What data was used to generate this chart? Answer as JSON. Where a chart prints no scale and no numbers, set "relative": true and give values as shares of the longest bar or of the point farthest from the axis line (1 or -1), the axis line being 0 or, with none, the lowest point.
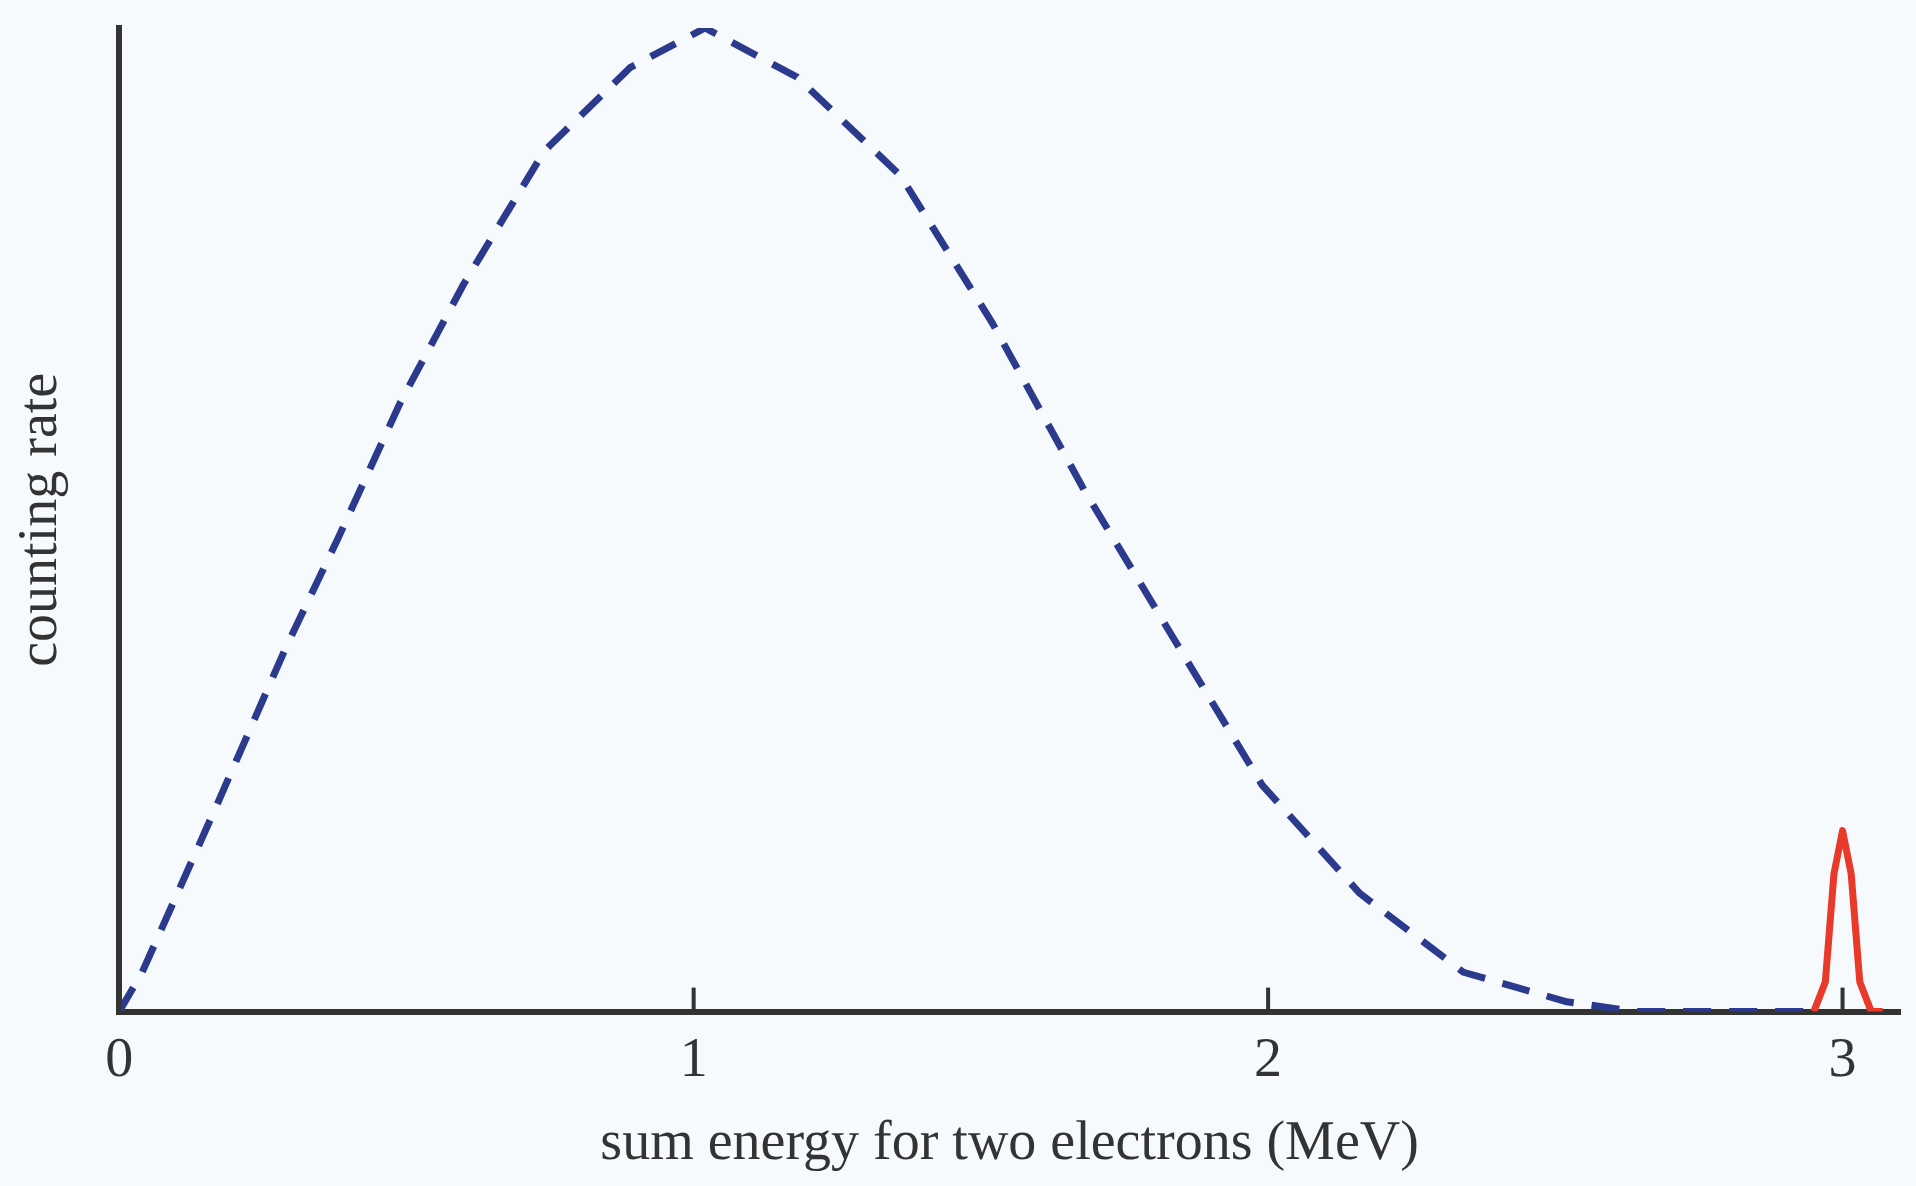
{
  "chart_data": {
    "type": "line",
    "relative": true,
    "xlabel": "sum energy for two electrons (MeV)",
    "ylabel": "counting rate",
    "xlim": [
      0,
      3.1
    ],
    "xticks": [
      0,
      1,
      2,
      3
    ],
    "grid": false,
    "legend": false,
    "marker": "none",
    "series": [
      {
        "color": "#2b3a8c",
        "line_style": "dashed",
        "x": [
          0,
          0.04,
          0.17,
          0.29,
          0.38,
          0.49,
          0.6,
          0.74,
          0.89,
          1.02,
          1.18,
          1.36,
          1.52,
          1.68,
          1.84,
          1.99,
          2.16,
          2.34,
          2.52,
          2.64,
          2.8,
          2.95
        ],
        "values": [
          0,
          0.04,
          0.21,
          0.37,
          0.48,
          0.62,
          0.74,
          0.875,
          0.96,
          1,
          0.95,
          0.85,
          0.7,
          0.53,
          0.375,
          0.23,
          0.12,
          0.04,
          0.01,
          0,
          0,
          0
        ]
      },
      {
        "color": "#e8392b",
        "line_style": "solid",
        "x": [
          2.95,
          2.97,
          2.985,
          3.0,
          3.015,
          3.03,
          3.05,
          3.07
        ],
        "values": [
          0,
          0.03,
          0.14,
          0.184,
          0.14,
          0.03,
          0,
          0
        ]
      }
    ]
  }
}
